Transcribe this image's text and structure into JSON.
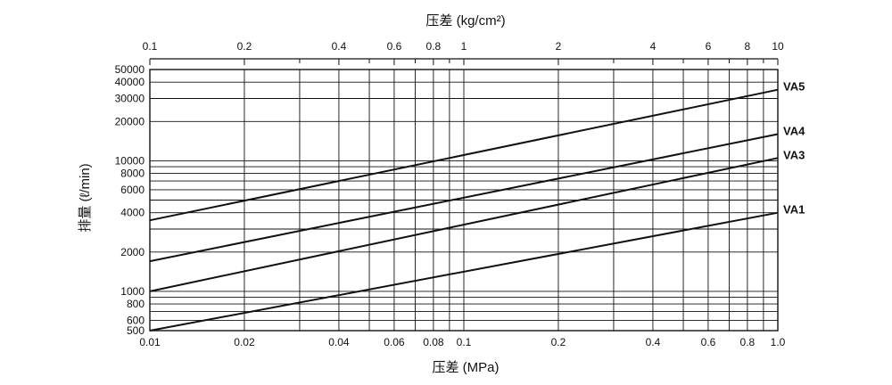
{
  "chart_data": {
    "type": "line",
    "x_scale": "log",
    "y_scale": "log",
    "xlabel": "压差 (MPa)",
    "x2label": "压差 (kg/cm²)",
    "ylabel": "排量 (ℓ/min)",
    "xlim": [
      0.01,
      1.0
    ],
    "x2lim": [
      0.1,
      10
    ],
    "ylim": [
      500,
      50000
    ],
    "grid": true,
    "x_ticks": [
      0.01,
      0.02,
      0.04,
      0.06,
      0.08,
      0.1,
      0.2,
      0.4,
      0.6,
      0.8,
      1.0
    ],
    "x_tick_labels": [
      "0.01",
      "0.02",
      "0.04",
      "0.06",
      "0.08",
      "0.1",
      "0.2",
      "0.4",
      "0.6",
      "0.8",
      "1.0"
    ],
    "x_minor_ticks": [
      0.03,
      0.05,
      0.07,
      0.09,
      0.3,
      0.5,
      0.7,
      0.9
    ],
    "x2_ticks": [
      0.1,
      0.2,
      0.4,
      0.6,
      0.8,
      1,
      2,
      4,
      6,
      8,
      10
    ],
    "x2_tick_labels": [
      "0.1",
      "0.2",
      "0.4",
      "0.6",
      "0.8",
      "1",
      "2",
      "4",
      "6",
      "8",
      "10"
    ],
    "x2_minor_ticks": [
      0.3,
      0.5,
      0.7,
      0.9,
      3,
      5,
      7,
      9
    ],
    "y_ticks": [
      500,
      600,
      800,
      1000,
      2000,
      4000,
      6000,
      8000,
      10000,
      20000,
      30000,
      40000,
      50000
    ],
    "y_tick_labels": [
      "500",
      "600",
      "800",
      "1000",
      "2000",
      "4000",
      "6000",
      "8000",
      "10000",
      "20000",
      "30000",
      "40000",
      "50000"
    ],
    "y_minor_ticks": [
      700,
      900,
      3000,
      5000,
      7000,
      9000
    ],
    "series": [
      {
        "name": "VA5",
        "x": [
          0.01,
          1.0
        ],
        "y": [
          3500,
          35000
        ]
      },
      {
        "name": "VA4",
        "x": [
          0.01,
          1.0
        ],
        "y": [
          1700,
          16000
        ]
      },
      {
        "name": "VA3",
        "x": [
          0.01,
          1.0
        ],
        "y": [
          1000,
          10500
        ]
      },
      {
        "name": "VA1",
        "x": [
          0.01,
          1.0
        ],
        "y": [
          500,
          4000
        ]
      }
    ]
  }
}
